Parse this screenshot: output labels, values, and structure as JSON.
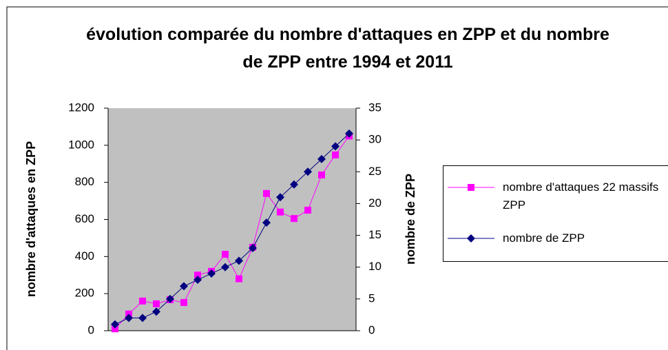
{
  "chart_data": {
    "type": "line",
    "title": "évolution comparée du nombre d'attaques en ZPP et du nombre de ZPP entre 1994 et 2011",
    "y_label": "nombre d'attaques en ZPP",
    "y2_label": "nombre de ZPP",
    "categories": [
      null,
      null,
      null,
      null,
      null,
      null,
      null,
      null,
      null,
      null,
      null,
      null,
      null,
      null,
      null,
      null,
      null,
      null
    ],
    "series": [
      {
        "name": "nombre d'attaques 22 massifs ZPP",
        "color": "#ff00ff",
        "marker": "square",
        "values": [
          10,
          90,
          160,
          145,
          167,
          152,
          300,
          320,
          412,
          280,
          450,
          740,
          640,
          605,
          650,
          840,
          948,
          1050
        ]
      },
      {
        "name": "nombre de ZPP",
        "color": "#000080",
        "marker": "diamond",
        "axis": "y2",
        "values": [
          1,
          2,
          2,
          3,
          5,
          7,
          8,
          9,
          10,
          11,
          13,
          17,
          21,
          23,
          25,
          27,
          29,
          31
        ]
      }
    ],
    "ylim": [
      0,
      1200
    ],
    "yticks": [
      0,
      200,
      400,
      600,
      800,
      1000,
      1200
    ],
    "y2lim": [
      0,
      35
    ],
    "y2ticks": [
      0,
      5,
      10,
      15,
      20,
      25,
      30,
      35
    ],
    "legend": "right",
    "plot_background": "#c0c0c0"
  }
}
